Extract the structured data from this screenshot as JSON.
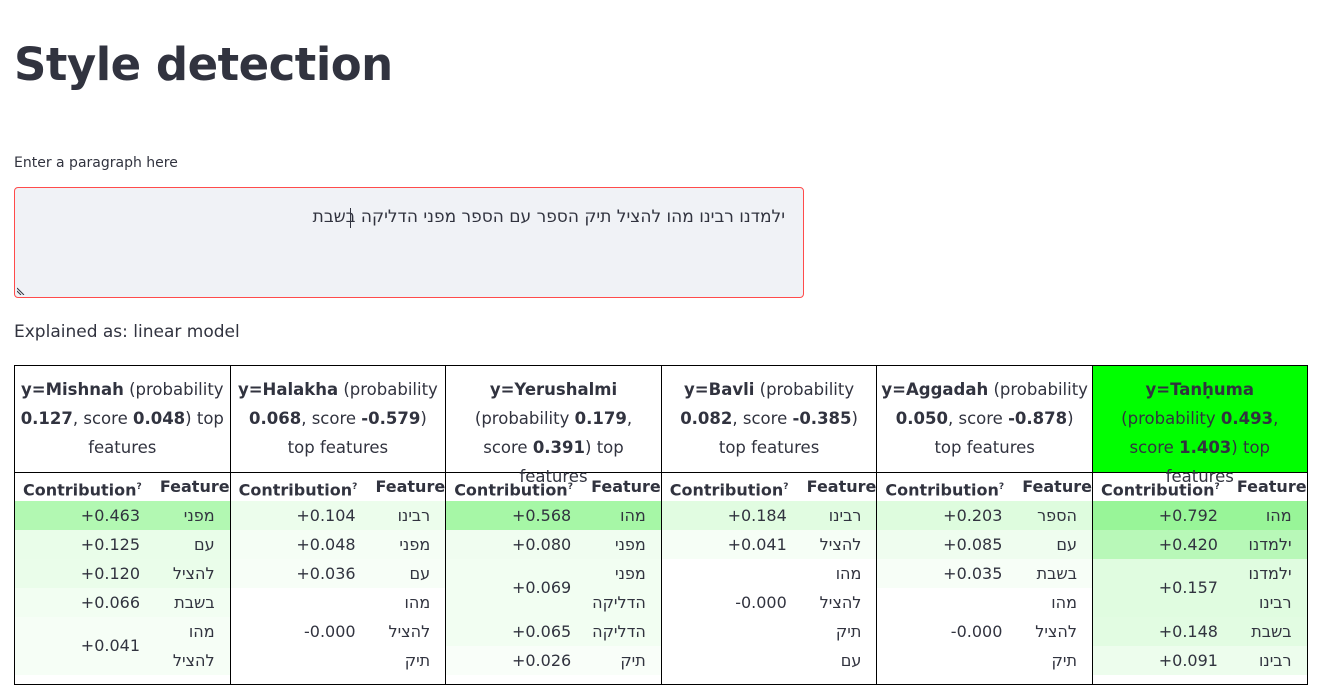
{
  "page": {
    "title": "Style detection",
    "input_label": "Enter a paragraph here",
    "input_value": "ילמדנו רבינו מהו להציל תיק הספר עם הספר מפני הדליקה בשבת",
    "explained": "Explained as: linear model"
  },
  "column_headers": {
    "contribution": "Contribution",
    "contribution_sup": "?",
    "feature": "Feature"
  },
  "classes": [
    {
      "label": "y=Mishnah",
      "prob_text": " (probability ",
      "probability": "0.127",
      "score_text": ", score ",
      "score": "0.048",
      "tail": ") top features",
      "highlight": false,
      "rows": [
        {
          "value": "+0.463",
          "features": [
            "מפני"
          ],
          "bg": "#b2f8b2"
        },
        {
          "value": "+0.125",
          "features": [
            "עם"
          ],
          "bg": "#e9fde9"
        },
        {
          "value": "+0.120",
          "features": [
            "להציל"
          ],
          "bg": "#eafdea"
        },
        {
          "value": "+0.066",
          "features": [
            "בשבת"
          ],
          "bg": "#f2fef2"
        },
        {
          "value": "+0.041",
          "features": [
            "מהו",
            "להציל"
          ],
          "bg": "#f6fef6"
        }
      ]
    },
    {
      "label": "y=Halakha",
      "prob_text": " (probability ",
      "probability": "0.068",
      "score_text": ", score ",
      "score": "-0.579",
      "tail": ") top features",
      "highlight": false,
      "rows": [
        {
          "value": "+0.104",
          "features": [
            "רבינו"
          ],
          "bg": "#ecfdec"
        },
        {
          "value": "+0.048",
          "features": [
            "מפני"
          ],
          "bg": "#f5fef5"
        },
        {
          "value": "+0.036",
          "features": [
            "עם"
          ],
          "bg": "#f7fef7"
        },
        {
          "value": "",
          "features": [
            "מהו"
          ],
          "bg": "#ffffff"
        },
        {
          "value": "-0.000",
          "features": [
            "להציל"
          ],
          "bg": "#ffffff"
        },
        {
          "value": "",
          "features": [
            "תיק"
          ],
          "bg": "#ffffff"
        }
      ]
    },
    {
      "label": "y=Yerushalmi",
      "prob_text": " (probability ",
      "probability": "0.179",
      "score_text": ", score ",
      "score": "0.391",
      "tail": ") top features",
      "highlight": false,
      "rows": [
        {
          "value": "+0.568",
          "features": [
            "מהו"
          ],
          "bg": "#a6f7a6"
        },
        {
          "value": "+0.080",
          "features": [
            "מפני"
          ],
          "bg": "#f0fdf0"
        },
        {
          "value": "+0.069",
          "features": [
            "מפני",
            "הדליקה"
          ],
          "bg": "#f2fef2"
        },
        {
          "value": "+0.065",
          "features": [
            "הדליקה"
          ],
          "bg": "#f2fef2"
        },
        {
          "value": "+0.026",
          "features": [
            "תיק"
          ],
          "bg": "#f9fef9"
        }
      ]
    },
    {
      "label": "y=Bavli",
      "prob_text": " (probability ",
      "probability": "0.082",
      "score_text": ", score ",
      "score": "-0.385",
      "tail": ") top features",
      "highlight": false,
      "rows": [
        {
          "value": "+0.184",
          "features": [
            "רבינו"
          ],
          "bg": "#e1fce1"
        },
        {
          "value": "+0.041",
          "features": [
            "להציל"
          ],
          "bg": "#f6fef6"
        },
        {
          "value": "",
          "features": [
            "מהו"
          ],
          "bg": "#ffffff"
        },
        {
          "value": "-0.000",
          "features": [
            "להציל"
          ],
          "bg": "#ffffff"
        },
        {
          "value": "",
          "features": [
            "תיק"
          ],
          "bg": "#ffffff"
        },
        {
          "value": "",
          "features": [
            "עם"
          ],
          "bg": "#ffffff"
        }
      ]
    },
    {
      "label": "y=Aggadah",
      "prob_text": " (probability ",
      "probability": "0.050",
      "score_text": ", score ",
      "score": "-0.878",
      "tail": ") top features",
      "highlight": false,
      "rows": [
        {
          "value": "+0.203",
          "features": [
            "הספר"
          ],
          "bg": "#defcde"
        },
        {
          "value": "+0.085",
          "features": [
            "עם"
          ],
          "bg": "#effdef"
        },
        {
          "value": "+0.035",
          "features": [
            "בשבת"
          ],
          "bg": "#f7fef7"
        },
        {
          "value": "",
          "features": [
            "מהו"
          ],
          "bg": "#ffffff"
        },
        {
          "value": "-0.000",
          "features": [
            "להציל"
          ],
          "bg": "#ffffff"
        },
        {
          "value": "",
          "features": [
            "תיק"
          ],
          "bg": "#ffffff"
        }
      ]
    },
    {
      "label": "y=Tanḥuma",
      "prob_text": " (probability ",
      "probability": "0.493",
      "score_text": ", score ",
      "score": "1.403",
      "tail": ") top features",
      "highlight": true,
      "rows": [
        {
          "value": "+0.792",
          "features": [
            "מהו"
          ],
          "bg": "#98f598"
        },
        {
          "value": "+0.420",
          "features": [
            "ילמדנו"
          ],
          "bg": "#b8f8b8"
        },
        {
          "value": "+0.157",
          "features": [
            "ילמדנו",
            "רבינו"
          ],
          "bg": "#e0fce0"
        },
        {
          "value": "+0.148",
          "features": [
            "בשבת"
          ],
          "bg": "#e2fce2"
        },
        {
          "value": "+0.091",
          "features": [
            "רבינו"
          ],
          "bg": "#edfded"
        }
      ]
    }
  ],
  "colors": {
    "highlight": "#00ff00",
    "input_border": "#ff4b4b",
    "input_bg": "#f0f2f6",
    "text": "#31333f"
  }
}
